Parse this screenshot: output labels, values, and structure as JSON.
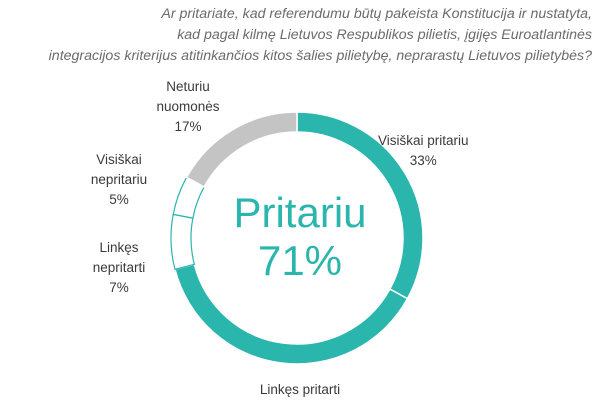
{
  "question": {
    "lines": [
      "Ar pritariate, kad referendumu būtų pakeista Konstitucija ir nustatyta,",
      "kad pagal kilmę Lietuvos Respublikos pilietis, įgijęs Euroatlantinės",
      "integracijos kriterijus atitinkančios kitos šalies pilietybę, neprarastų Lietuvos pilietybės?"
    ]
  },
  "center": {
    "label": "Pritariu",
    "value": "71%"
  },
  "colors": {
    "accent": "#2ab5ad",
    "gray": "#c4c4c4",
    "outline_fill": "#ffffff"
  },
  "chart_data": {
    "type": "pie",
    "variant": "donut",
    "title": "Ar pritariate, kad referendumu būtų pakeista Konstitucija ir nustatyta, kad pagal kilmę Lietuvos Respublikos pilietis, įgijęs Euroatlantinės integracijos kriterijus atitinkančios kitos šalies pilietybę, neprarastų Lietuvos pilietybės?",
    "center_label": "Pritariu 71%",
    "slices": [
      {
        "label": "Visiškai pritariu",
        "value": 33,
        "display": "33%",
        "color": "#2ab5ad"
      },
      {
        "label": "Linkęs pritarti",
        "value": 38,
        "display": "",
        "color": "#2ab5ad"
      },
      {
        "label": "Linkęs nepritarti",
        "value": 7,
        "display": "7%",
        "color": "#ffffff"
      },
      {
        "label": "Visiškai nepritariu",
        "value": 5,
        "display": "5%",
        "color": "#ffffff"
      },
      {
        "label": "Neturiu nuomonės",
        "value": 17,
        "display": "17%",
        "color": "#c4c4c4"
      }
    ]
  }
}
